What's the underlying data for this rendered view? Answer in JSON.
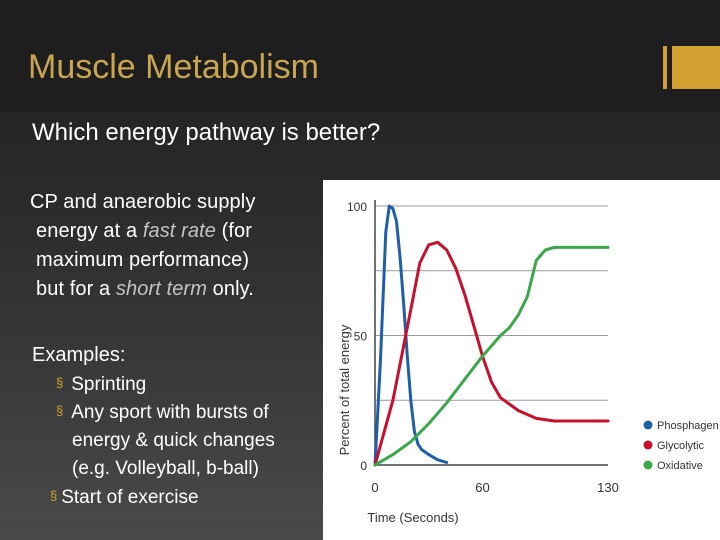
{
  "slide": {
    "title": "Muscle Metabolism",
    "subtitle": "Which energy pathway is better?",
    "paragraph": {
      "line1": "CP and anaerobic supply",
      "line2": "energy at a ",
      "line2_em": "fast rate",
      "line2_tail": " (for",
      "line3": "maximum performance)",
      "line4": "but for a ",
      "line4_em": "short term",
      "line4_tail": " only."
    },
    "examples_heading": "Examples:",
    "bullets": {
      "b1": "Sprinting",
      "b2_line1": "Any sport with bursts of",
      "b2_line2": "energy & quick changes",
      "b2_line3": "(e.g.  Volleyball, b-ball)",
      "b3": "Start of exercise"
    },
    "bullet_marker": "§",
    "colors": {
      "title": "#c8a550",
      "accent": "#d0a030",
      "emphasis": "#c4c4c4"
    }
  },
  "chart_data": {
    "type": "line",
    "xlabel": "Time (Seconds)",
    "ylabel": "Percent of total energy",
    "xlim": [
      0,
      130
    ],
    "ylim": [
      0,
      100
    ],
    "x_ticks": [
      0,
      60,
      130
    ],
    "y_ticks": [
      0,
      50,
      100
    ],
    "grid": true,
    "legend_position": "right",
    "series": [
      {
        "name": "Phosphagen",
        "color": "#1f5fa8",
        "x": [
          0,
          3,
          6,
          8,
          10,
          12,
          14,
          16,
          18,
          20,
          22,
          24,
          26,
          28,
          30,
          35,
          40
        ],
        "y": [
          0,
          40,
          90,
          100,
          99,
          94,
          80,
          62,
          42,
          25,
          13,
          8,
          6,
          5,
          4,
          2,
          1
        ]
      },
      {
        "name": "Glycolytic",
        "color": "#c8102e",
        "x": [
          0,
          10,
          20,
          25,
          30,
          35,
          40,
          45,
          50,
          55,
          60,
          65,
          70,
          80,
          90,
          100,
          110,
          120,
          130
        ],
        "y": [
          0,
          25,
          60,
          78,
          85,
          86,
          83,
          76,
          66,
          54,
          42,
          32,
          26,
          21,
          18,
          17,
          17,
          17,
          17
        ]
      },
      {
        "name": "Oxidative",
        "color": "#3aa84a",
        "x": [
          0,
          10,
          20,
          30,
          40,
          50,
          60,
          70,
          75,
          80,
          85,
          90,
          95,
          100,
          110,
          120,
          130
        ],
        "y": [
          0,
          4,
          9,
          16,
          24,
          33,
          42,
          50,
          53,
          58,
          65,
          79,
          83,
          84,
          84,
          84,
          84
        ]
      }
    ]
  }
}
